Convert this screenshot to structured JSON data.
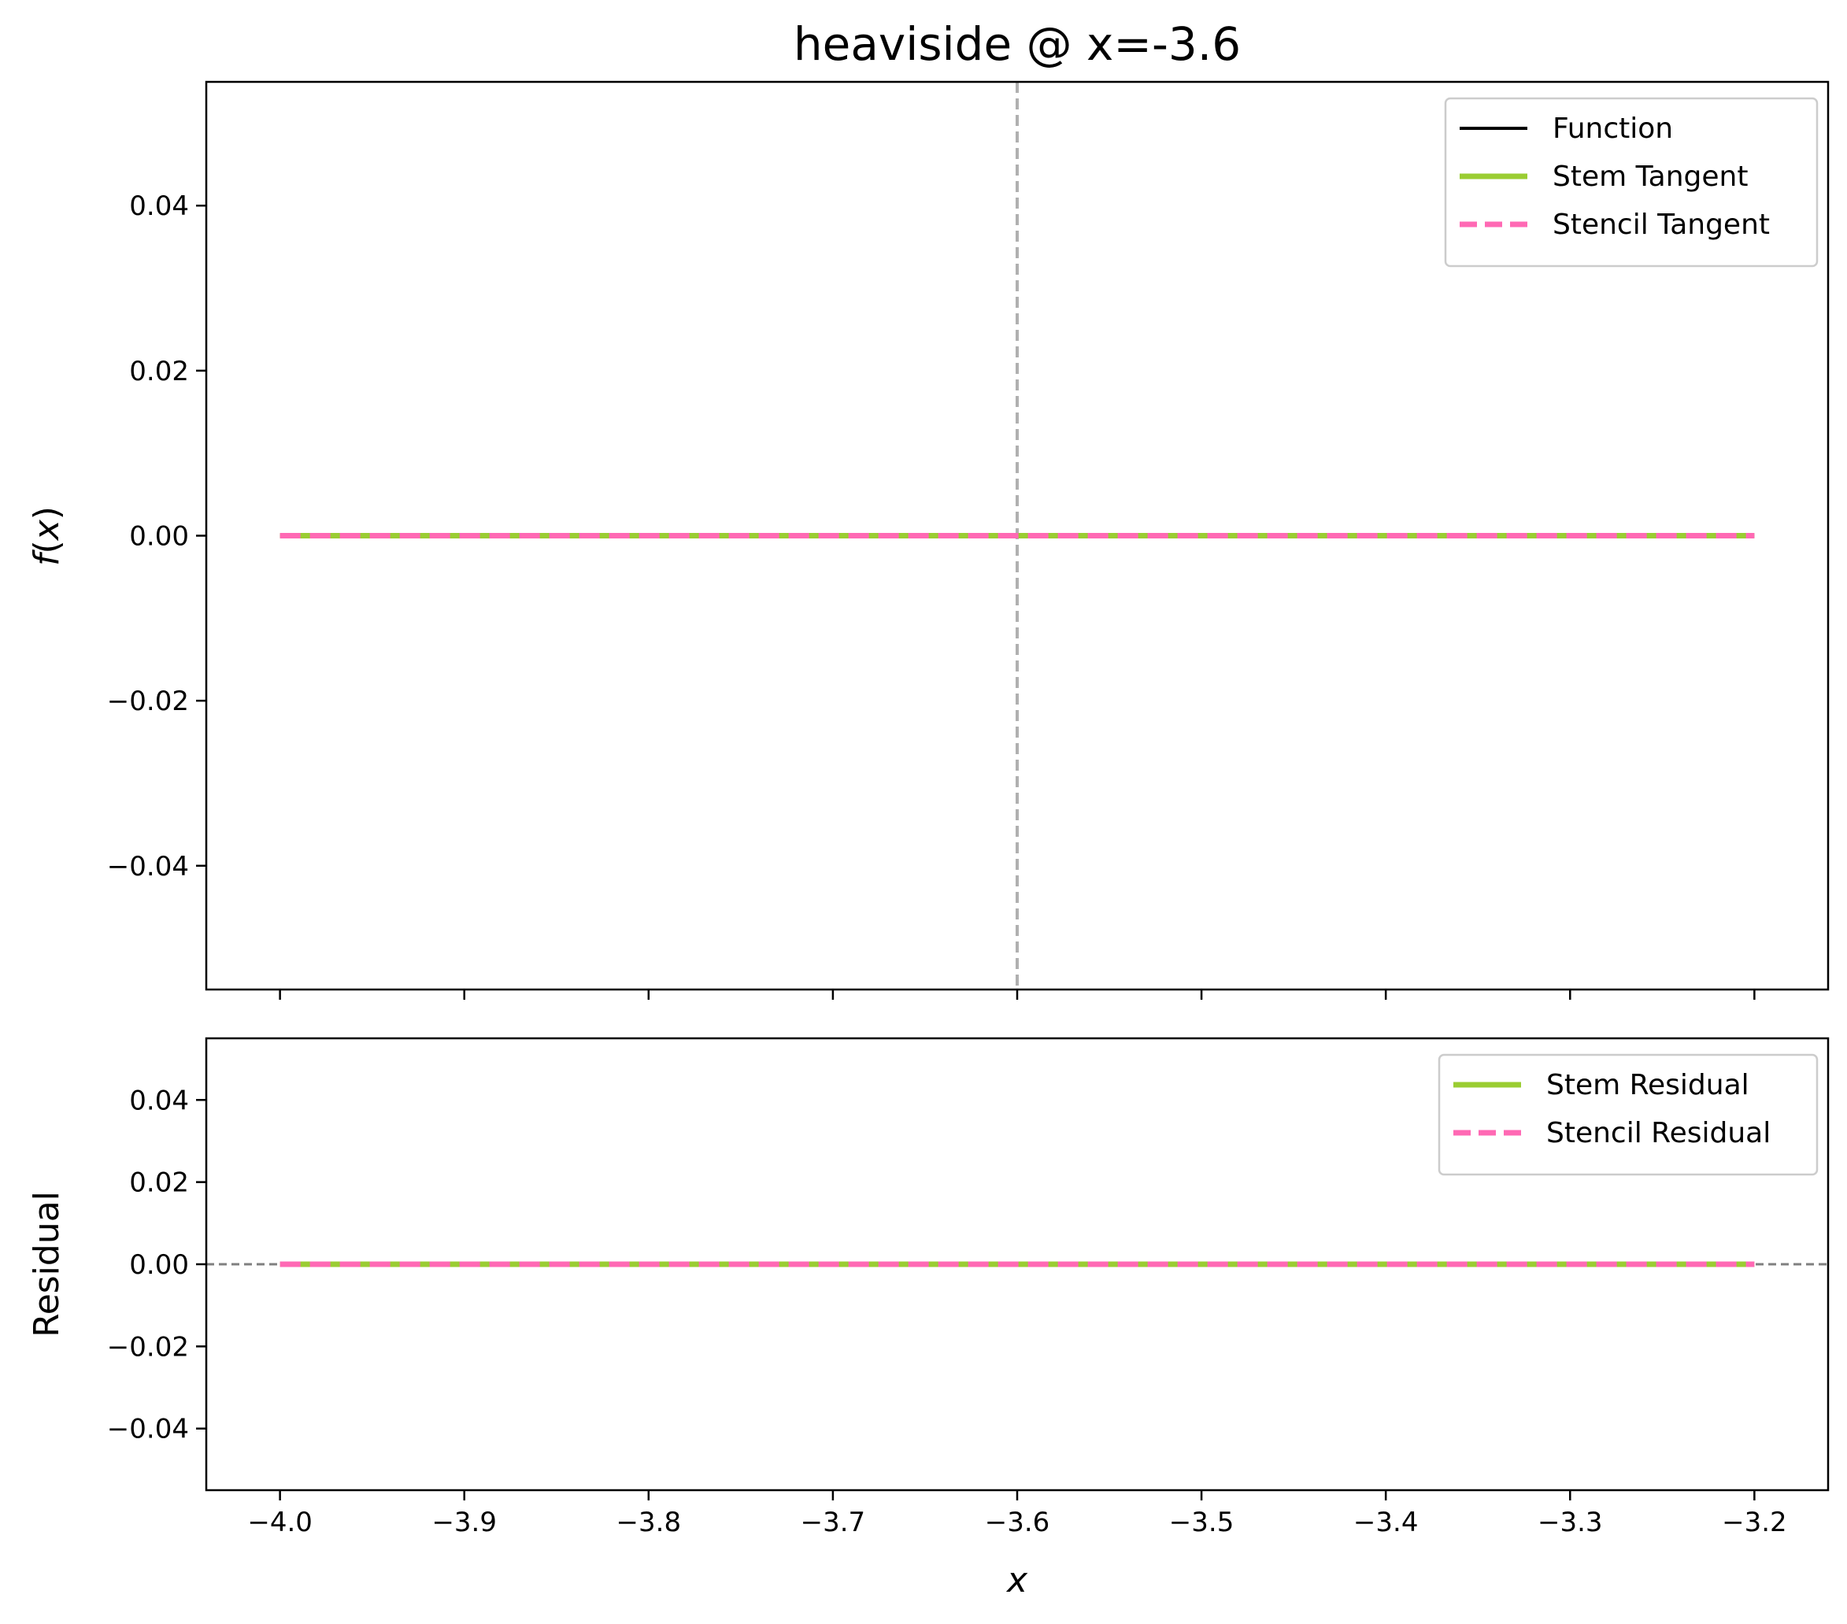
{
  "chart_data": [
    {
      "type": "line",
      "title": "heaviside @ x=-3.6",
      "xlabel": "",
      "ylabel": "f(x)",
      "xlim": [
        -4.04,
        -3.16
      ],
      "ylim": [
        -0.055,
        0.055
      ],
      "xticks": [
        -4.0,
        -3.9,
        -3.8,
        -3.7,
        -3.6,
        -3.5,
        -3.4,
        -3.3,
        -3.2
      ],
      "yticks": [
        -0.04,
        -0.02,
        0.0,
        0.02,
        0.04
      ],
      "ytick_labels": [
        "−0.04",
        "−0.02",
        "0.00",
        "0.02",
        "0.04"
      ],
      "show_xtick_labels": false,
      "grid": false,
      "legend_position": "top-right",
      "vline": {
        "x": -3.6,
        "color": "#b0b0b0",
        "style": "dashed"
      },
      "series": [
        {
          "name": "Function",
          "color": "#000000",
          "style": "solid",
          "x": [
            -4.0,
            -3.2
          ],
          "y": [
            0.0,
            0.0
          ]
        },
        {
          "name": "Stem Tangent",
          "color": "#9acd32",
          "style": "solid",
          "x": [
            -4.0,
            -3.2
          ],
          "y": [
            0.0,
            0.0
          ]
        },
        {
          "name": "Stencil Tangent",
          "color": "#ff69b4",
          "style": "dashed",
          "x": [
            -4.0,
            -3.2
          ],
          "y": [
            0.0,
            0.0
          ]
        }
      ]
    },
    {
      "type": "line",
      "title": "",
      "xlabel": "x",
      "ylabel": "Residual",
      "xlim": [
        -4.04,
        -3.16
      ],
      "ylim": [
        -0.055,
        0.055
      ],
      "xticks": [
        -4.0,
        -3.9,
        -3.8,
        -3.7,
        -3.6,
        -3.5,
        -3.4,
        -3.3,
        -3.2
      ],
      "xtick_labels": [
        "−4.0",
        "−3.9",
        "−3.8",
        "−3.7",
        "−3.6",
        "−3.5",
        "−3.4",
        "−3.3",
        "−3.2"
      ],
      "yticks": [
        -0.04,
        -0.02,
        0.0,
        0.02,
        0.04
      ],
      "ytick_labels": [
        "−0.04",
        "−0.02",
        "0.00",
        "0.02",
        "0.04"
      ],
      "show_xtick_labels": true,
      "grid": false,
      "legend_position": "top-right",
      "hline": {
        "y": 0.0,
        "color": "#808080",
        "style": "dashed"
      },
      "series": [
        {
          "name": "Stem Residual",
          "color": "#9acd32",
          "style": "solid",
          "x": [
            -4.0,
            -3.2
          ],
          "y": [
            0.0,
            0.0
          ]
        },
        {
          "name": "Stencil Residual",
          "color": "#ff69b4",
          "style": "dashed",
          "x": [
            -4.0,
            -3.2
          ],
          "y": [
            0.0,
            0.0
          ]
        }
      ]
    }
  ]
}
